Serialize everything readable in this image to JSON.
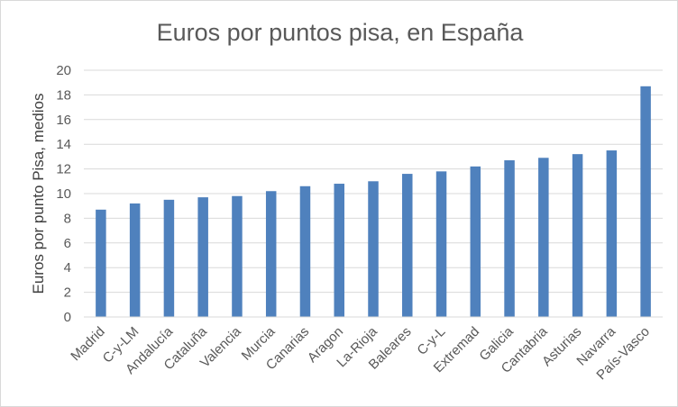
{
  "chart_data": {
    "type": "bar",
    "title": "Euros por puntos pisa, en España",
    "xlabel": "",
    "ylabel": "Euros por punto Pisa, medios",
    "ylim": [
      0,
      20
    ],
    "yticks": [
      0,
      2,
      4,
      6,
      8,
      10,
      12,
      14,
      16,
      18,
      20
    ],
    "grid": true,
    "legend": "none",
    "bar_color": "#4f81bd",
    "categories": [
      "Madrid",
      "C-y-LM",
      "Andalucía",
      "Cataluña",
      "Valencia",
      "Murcia",
      "Canarias",
      "Aragon",
      "La-Rioja",
      "Baleares",
      "C-y-L",
      "Extremad",
      "Galicia",
      "Cantabria",
      "Asturias",
      "Navarra",
      "País-Vasco"
    ],
    "values": [
      8.7,
      9.2,
      9.5,
      9.7,
      9.8,
      10.2,
      10.6,
      10.8,
      11.0,
      11.6,
      11.8,
      12.2,
      12.7,
      12.9,
      13.2,
      13.5,
      18.7
    ]
  }
}
